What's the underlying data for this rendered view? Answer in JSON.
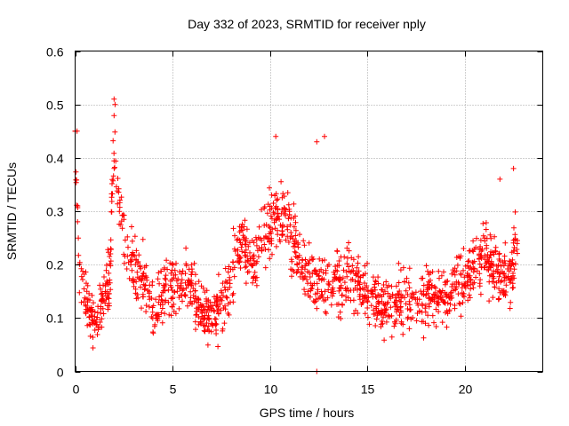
{
  "chart_data": {
    "type": "scatter",
    "title": "Day 332 of 2023, SRMTID for receiver nply",
    "xlabel": "GPS time / hours",
    "ylabel": "SRMTID / TECUs",
    "xlim": [
      0,
      24
    ],
    "ylim": [
      0,
      0.6
    ],
    "x_ticks": [
      0,
      5,
      10,
      15,
      20
    ],
    "x_tick_labels": [
      "0",
      "5",
      "10",
      "15",
      "20"
    ],
    "y_ticks": [
      0,
      0.1,
      0.2,
      0.3,
      0.4,
      0.5,
      0.6
    ],
    "y_tick_labels": [
      "0",
      "0.1",
      "0.2",
      "0.3",
      "0.4",
      "0.5",
      "0.6"
    ],
    "grid": true,
    "marker": "plus",
    "color": "#ff0000",
    "profile": {
      "x": [
        0.0,
        0.1,
        0.2,
        0.4,
        0.6,
        0.8,
        1.0,
        1.2,
        1.4,
        1.6,
        1.8,
        1.9,
        2.0,
        2.2,
        2.4,
        2.6,
        2.8,
        3.0,
        3.2,
        3.5,
        3.8,
        4.0,
        4.2,
        4.5,
        5.0,
        5.5,
        6.0,
        6.5,
        6.8,
        7.0,
        7.3,
        7.6,
        8.0,
        8.4,
        8.8,
        9.2,
        9.6,
        10.0,
        10.4,
        10.8,
        11.2,
        11.6,
        12.0,
        12.4,
        12.8,
        13.2,
        13.6,
        14.0,
        14.5,
        15.0,
        15.5,
        16.0,
        16.5,
        17.0,
        17.5,
        18.0,
        18.5,
        19.0,
        19.5,
        20.0,
        20.5,
        21.0,
        21.5,
        22.0,
        22.4,
        22.7
      ],
      "y": [
        0.38,
        0.33,
        0.2,
        0.16,
        0.14,
        0.1,
        0.09,
        0.1,
        0.13,
        0.16,
        0.17,
        0.35,
        0.42,
        0.36,
        0.28,
        0.24,
        0.21,
        0.2,
        0.19,
        0.17,
        0.14,
        0.12,
        0.12,
        0.14,
        0.16,
        0.17,
        0.16,
        0.12,
        0.1,
        0.11,
        0.12,
        0.13,
        0.18,
        0.23,
        0.22,
        0.2,
        0.25,
        0.27,
        0.3,
        0.28,
        0.25,
        0.2,
        0.18,
        0.16,
        0.15,
        0.16,
        0.17,
        0.18,
        0.16,
        0.14,
        0.13,
        0.13,
        0.13,
        0.14,
        0.13,
        0.13,
        0.14,
        0.14,
        0.16,
        0.18,
        0.2,
        0.22,
        0.2,
        0.17,
        0.2,
        0.25
      ]
    },
    "spread": 0.05,
    "point_count": 1500,
    "spikes": [
      {
        "x": 2.0,
        "y": 0.51
      },
      {
        "x": 2.05,
        "y": 0.5
      },
      {
        "x": 12.4,
        "y": 0.0
      },
      {
        "x": 12.8,
        "y": 0.44
      },
      {
        "x": 12.4,
        "y": 0.43
      },
      {
        "x": 10.3,
        "y": 0.44
      },
      {
        "x": 0.1,
        "y": 0.45
      },
      {
        "x": 21.8,
        "y": 0.36
      },
      {
        "x": 22.5,
        "y": 0.38
      },
      {
        "x": 0.0,
        "y": 0.45
      }
    ]
  }
}
